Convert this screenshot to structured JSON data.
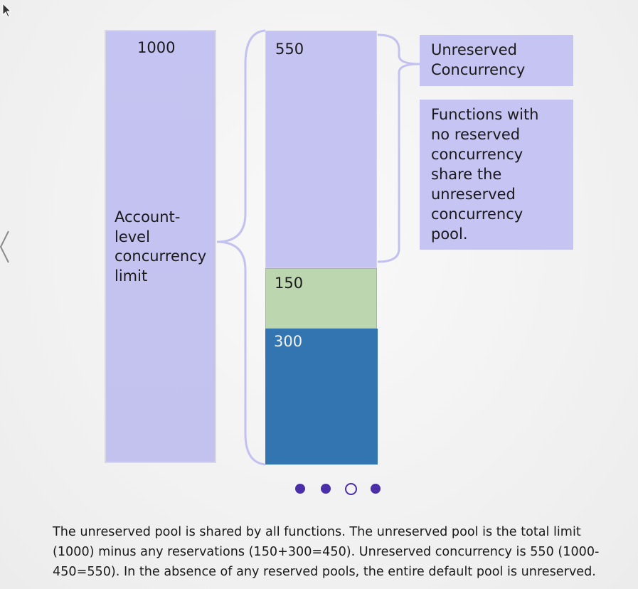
{
  "diagram": {
    "account_bar": {
      "value": "1000",
      "label": "Account-\nlevel\nconcurrency\nlimit"
    },
    "segments": [
      {
        "value": "550",
        "kind": "unreserved"
      },
      {
        "value": "150",
        "kind": "reserved"
      },
      {
        "value": "300",
        "kind": "reserved"
      }
    ],
    "callouts": {
      "unreserved": "Unreserved\nConcurrency",
      "functions": "Functions with\nno reserved\nconcurrency\nshare the\nunreserved\nconcurrency\npool."
    },
    "colors": {
      "unreserved": "#c5c3f1",
      "reserved_150": "#bcd7b0",
      "reserved_300": "#3275b1",
      "brace": "#c3c1ef",
      "pager": "#4a2fa8"
    }
  },
  "pager": {
    "pages": 4,
    "current": 3
  },
  "caption": "The unreserved pool is shared by all functions. The unreserved pool is the total limit (1000) minus any reservations (150+300=450). Unreserved concurrency is 550 (1000-450=550). In the absence of any reserved pools, the entire default pool is unreserved.",
  "icons": {
    "prev": "chevron-left-icon",
    "cursor": "mouse-pointer-icon"
  }
}
